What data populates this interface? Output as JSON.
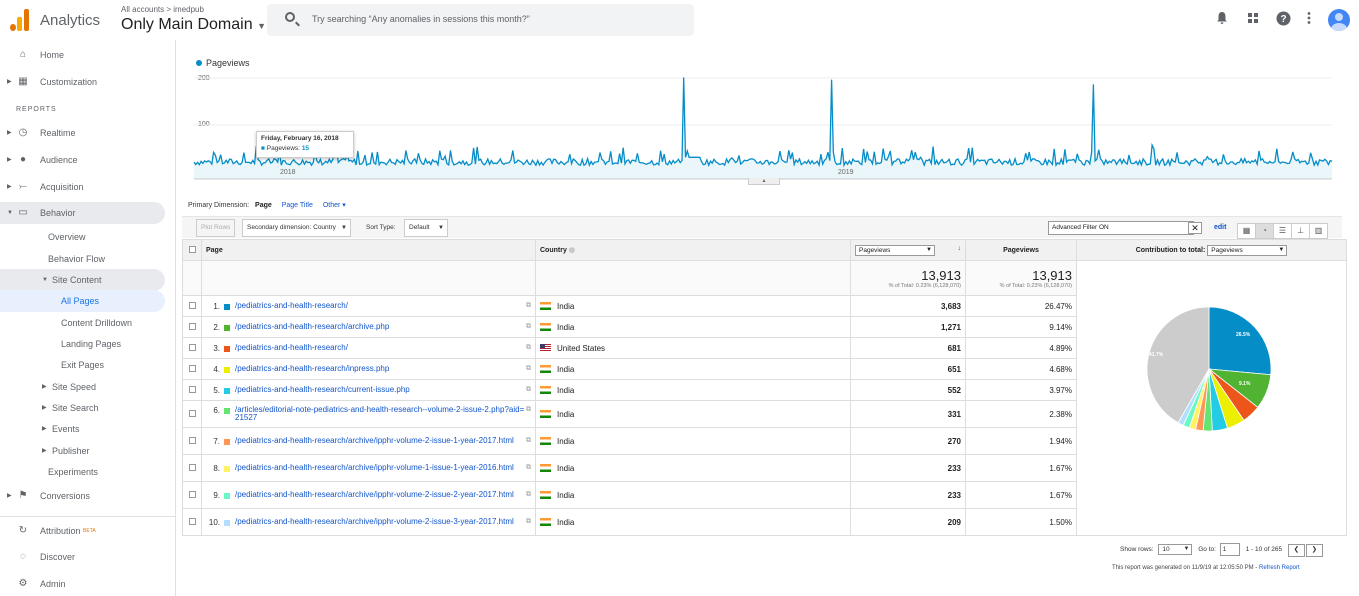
{
  "topbar": {
    "app_name": "Analytics",
    "breadcrumb": "All accounts > imedpub",
    "view_name": "Only Main Domain",
    "search_placeholder": "Try searching “Any anomalies in sessions this month?”"
  },
  "sidebar": {
    "home": "Home",
    "customization": "Customization",
    "reports_header": "REPORTS",
    "realtime": "Realtime",
    "audience": "Audience",
    "acquisition": "Acquisition",
    "behavior": "Behavior",
    "overview": "Overview",
    "behavior_flow": "Behavior Flow",
    "site_content": "Site Content",
    "all_pages": "All Pages",
    "content_drilldown": "Content Drilldown",
    "landing_pages": "Landing Pages",
    "exit_pages": "Exit Pages",
    "site_speed": "Site Speed",
    "site_search": "Site Search",
    "events": "Events",
    "publisher": "Publisher",
    "experiments": "Experiments",
    "conversions": "Conversions",
    "attribution": "Attribution",
    "attribution_badge": "BETA",
    "discover": "Discover",
    "admin": "Admin"
  },
  "chart": {
    "legend": "Pageviews",
    "y_ticks": [
      "200",
      "100"
    ],
    "x_ticks": [
      "2018",
      "2019"
    ],
    "tooltip_date": "Friday, February 16, 2018",
    "tooltip_metric": "Pageviews:",
    "tooltip_value": "15"
  },
  "chart_data": {
    "type": "line",
    "series": [
      {
        "name": "Pageviews",
        "color": "#058dc7"
      }
    ],
    "y_range": [
      0,
      230
    ],
    "peaks": [
      {
        "x_fraction": 0.43,
        "y": 195
      },
      {
        "x_fraction": 0.56,
        "y": 190
      },
      {
        "x_fraction": 0.79,
        "y": 180
      }
    ],
    "baseline_level": 10,
    "x_labels": [
      "2018",
      "2019"
    ]
  },
  "dimensions": {
    "label": "Primary Dimension:",
    "active": "Page",
    "opt1": "Page Title",
    "opt2": "Other"
  },
  "controls": {
    "plot_rows": "Plot Rows",
    "secondary_dim": "Secondary dimension: Country",
    "sort_type_label": "Sort Type:",
    "sort_type_value": "Default",
    "filter_text": "Advanced Filter ON",
    "edit": "edit"
  },
  "table": {
    "headers": {
      "page": "Page",
      "country": "Country",
      "metric_select": "Pageviews",
      "pageviews": "Pageviews",
      "contribution": "Contribution to total:",
      "contribution_select": "Pageviews"
    },
    "totals": {
      "value1": "13,913",
      "sub1": "% of Total: 0.23% (6,128,070)",
      "value2": "13,913",
      "sub2": "% of Total: 0.23% (6,128,070)"
    },
    "rows": [
      {
        "n": "1.",
        "color": "#058dc7",
        "page": "/pediatrics-and-health-research/",
        "country": "India",
        "flag": "in",
        "views": "3,683",
        "pct": "26.47%"
      },
      {
        "n": "2.",
        "color": "#50b432",
        "page": "/pediatrics-and-health-research/archive.php",
        "country": "India",
        "flag": "in",
        "views": "1,271",
        "pct": "9.14%"
      },
      {
        "n": "3.",
        "color": "#ed561b",
        "page": "/pediatrics-and-health-research/",
        "country": "United States",
        "flag": "us",
        "views": "681",
        "pct": "4.89%"
      },
      {
        "n": "4.",
        "color": "#edef00",
        "page": "/pediatrics-and-health-research/inpress.php",
        "country": "India",
        "flag": "in",
        "views": "651",
        "pct": "4.68%"
      },
      {
        "n": "5.",
        "color": "#24cbe5",
        "page": "/pediatrics-and-health-research/current-issue.php",
        "country": "India",
        "flag": "in",
        "views": "552",
        "pct": "3.97%"
      },
      {
        "n": "6.",
        "color": "#64e572",
        "page": "/articles/editorial-note-pediatrics-and-health-research--volume-2-issue-2.php?aid=21527",
        "country": "India",
        "flag": "in",
        "views": "331",
        "pct": "2.38%"
      },
      {
        "n": "7.",
        "color": "#ff9655",
        "page": "/pediatrics-and-health-research/archive/ipphr-volume-2-issue-1-year-2017.html",
        "country": "India",
        "flag": "in",
        "views": "270",
        "pct": "1.94%"
      },
      {
        "n": "8.",
        "color": "#fff263",
        "page": "/pediatrics-and-health-research/archive/ipphr-volume-1-issue-1-year-2016.html",
        "country": "India",
        "flag": "in",
        "views": "233",
        "pct": "1.67%"
      },
      {
        "n": "9.",
        "color": "#6af9c4",
        "page": "/pediatrics-and-health-research/archive/ipphr-volume-2-issue-2-year-2017.html",
        "country": "India",
        "flag": "in",
        "views": "233",
        "pct": "1.67%"
      },
      {
        "n": "10.",
        "color": "#b2deff",
        "page": "/pediatrics-and-health-research/archive/ipphr-volume-2-issue-3-year-2017.html",
        "country": "India",
        "flag": "in",
        "views": "209",
        "pct": "1.50%"
      }
    ]
  },
  "pie": {
    "label_first": "26.5%",
    "label_second": "9.1%",
    "label_other": "41.7%",
    "other_color": "#cccccc",
    "slices_percent": [
      26.47,
      9.14,
      4.89,
      4.68,
      3.97,
      2.38,
      1.94,
      1.67,
      1.67,
      1.5,
      41.69
    ]
  },
  "footer": {
    "show_rows_label": "Show rows:",
    "show_rows_value": "10",
    "goto_label": "Go to:",
    "goto_value": "1",
    "range": "1 - 10 of 265",
    "generated": "This report was generated on 11/9/19 at 12:05:50 PM - ",
    "refresh": "Refresh Report"
  }
}
